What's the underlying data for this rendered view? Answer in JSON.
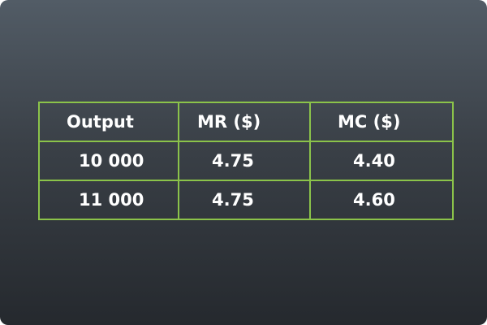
{
  "chart_data": {
    "type": "table",
    "columns": [
      "Output",
      "MR  ($)",
      "MC  ($)"
    ],
    "rows": [
      [
        "10 000",
        "4.75",
        "4.40"
      ],
      [
        "11  000",
        "4.75",
        "4.60"
      ]
    ]
  },
  "colors": {
    "grid": "#8bc34a",
    "text": "#ffffff",
    "background_top": "#525c66",
    "background_bottom": "#25292e"
  }
}
